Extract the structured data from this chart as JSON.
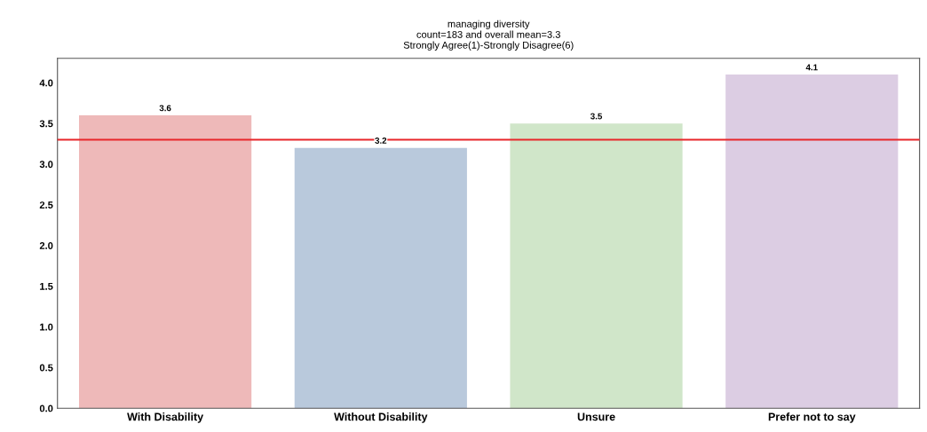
{
  "chart_data": {
    "type": "bar",
    "title": "managing diversity\ncount=183 and overall mean=3.3\nStrongly Agree(1)-Strongly Disagree(6)",
    "categories": [
      "With Disability",
      "Without Disability",
      "Unsure",
      "Prefer not to say"
    ],
    "values": [
      3.6,
      3.2,
      3.5,
      4.1
    ],
    "colors": [
      "#eeb9b9",
      "#b9c9dc",
      "#d0e6c9",
      "#dccde3"
    ],
    "ylim": [
      0,
      4.3
    ],
    "yticks": [
      {
        "value": 0,
        "label": "0.0"
      },
      {
        "value": 0.5,
        "label": "0.5"
      },
      {
        "value": 1,
        "label": "1.0"
      },
      {
        "value": 1.5,
        "label": "1.5"
      },
      {
        "value": 2,
        "label": "2.0"
      },
      {
        "value": 2.5,
        "label": "2.5"
      },
      {
        "value": 3,
        "label": "3.0"
      },
      {
        "value": 3.5,
        "label": "3.5"
      },
      {
        "value": 4,
        "label": "4.0"
      }
    ],
    "ref_lines": [
      {
        "axis": "y",
        "value": 3.3,
        "color": "#e8262a"
      }
    ],
    "data_labels": true,
    "grid": false
  }
}
